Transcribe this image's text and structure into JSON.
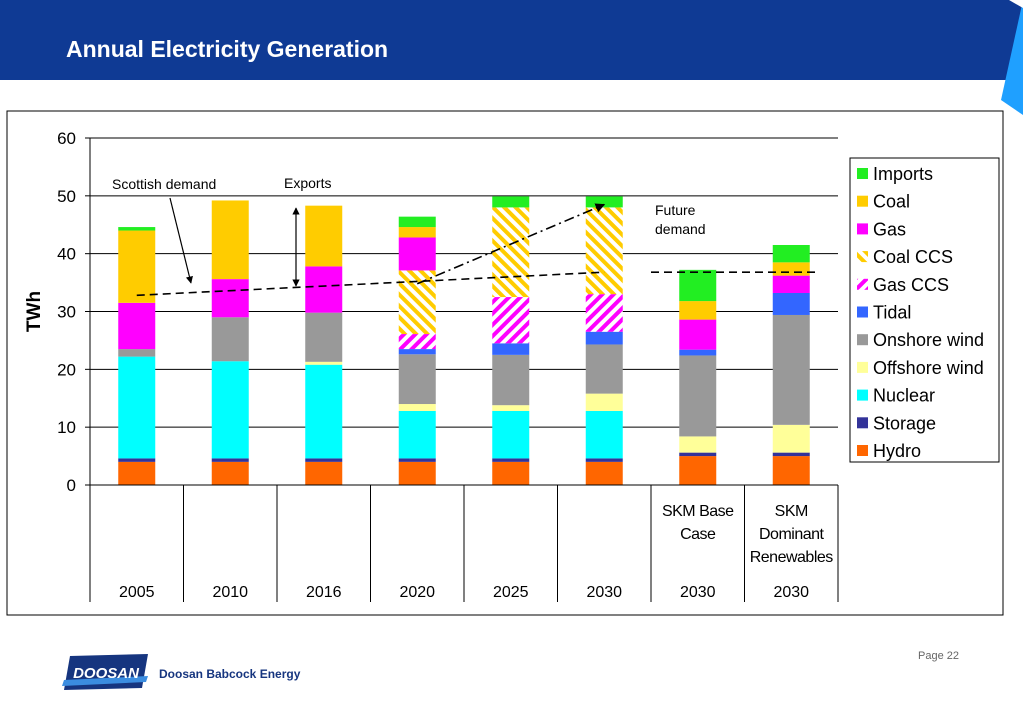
{
  "header": {
    "title": "Annual Electricity Generation"
  },
  "footer": {
    "page": "Page 22",
    "company": "Doosan Babcock Energy",
    "logo_text": "DOOSAN"
  },
  "colors": {
    "header_bg": "#0f3a94",
    "Imports": "#22ee22",
    "Coal": "#ffcc00",
    "Gas": "#ff00ff",
    "Coal CCS": "#ffcc00",
    "Gas CCS": "#ff00ff",
    "Tidal": "#3366ff",
    "Onshore wind": "#999999",
    "Offshore wind": "#ffff99",
    "Nuclear": "#00ffff",
    "Storage": "#333399",
    "Hydro": "#ff6600"
  },
  "chart_data": {
    "type": "bar",
    "stacked": true,
    "ylabel": "TWh",
    "ylim": [
      0,
      60
    ],
    "yticks": [
      0,
      10,
      20,
      30,
      40,
      50,
      60
    ],
    "grid": true,
    "legend_position": "right",
    "categories": [
      "2005",
      "2010",
      "2016",
      "2020",
      "2025",
      "2030",
      "2030",
      "2030"
    ],
    "category_sublabels": [
      "",
      "",
      "",
      "",
      "",
      "",
      "SKM Base Case",
      "SKM Dominant Renewables"
    ],
    "series": [
      {
        "name": "Hydro",
        "values": [
          4.0,
          4.0,
          4.0,
          4.0,
          4.0,
          4.0,
          5.0,
          5.0
        ]
      },
      {
        "name": "Storage",
        "values": [
          0.6,
          0.6,
          0.6,
          0.6,
          0.6,
          0.6,
          0.6,
          0.6
        ]
      },
      {
        "name": "Nuclear",
        "values": [
          17.6,
          16.8,
          16.2,
          8.2,
          8.2,
          8.2,
          0,
          0
        ]
      },
      {
        "name": "Offshore wind",
        "values": [
          0,
          0,
          0.5,
          1.2,
          1.0,
          3.0,
          2.8,
          4.8
        ]
      },
      {
        "name": "Onshore wind",
        "values": [
          1.3,
          7.6,
          8.5,
          8.6,
          8.7,
          8.5,
          14.0,
          19.0
        ]
      },
      {
        "name": "Tidal",
        "values": [
          0,
          0,
          0,
          0.9,
          2.0,
          2.2,
          1.0,
          3.8
        ]
      },
      {
        "name": "Gas CCS",
        "values": [
          0,
          0,
          0,
          2.6,
          8.0,
          6.5,
          0,
          0
        ]
      },
      {
        "name": "Coal CCS",
        "values": [
          0,
          0,
          0,
          11.0,
          15.5,
          15.0,
          0,
          0
        ]
      },
      {
        "name": "Gas",
        "values": [
          8.0,
          6.6,
          8.0,
          5.7,
          0,
          0,
          5.2,
          3.0
        ]
      },
      {
        "name": "Coal",
        "values": [
          12.5,
          13.6,
          10.5,
          1.8,
          0,
          0,
          3.2,
          2.3
        ]
      },
      {
        "name": "Imports",
        "values": [
          0.6,
          0,
          0,
          1.8,
          1.9,
          1.9,
          5.4,
          3.0
        ]
      }
    ],
    "legend_order": [
      "Imports",
      "Coal",
      "Gas",
      "Coal CCS",
      "Gas CCS",
      "Tidal",
      "Onshore wind",
      "Offshore wind",
      "Nuclear",
      "Storage",
      "Hydro"
    ],
    "hatched_series": [
      "Coal CCS",
      "Gas CCS"
    ],
    "lines": [
      {
        "name": "Scottish demand",
        "style": "dashed",
        "points": [
          [
            0,
            32.8
          ],
          [
            5,
            36.8
          ]
        ]
      },
      {
        "name": "Future demand",
        "style": "dashdot",
        "points": [
          [
            3,
            34.8
          ],
          [
            5,
            48.5
          ]
        ]
      },
      {
        "name": "Future demand",
        "style": "dashed",
        "points": [
          [
            5.5,
            36.8
          ],
          [
            7.3,
            36.8
          ]
        ]
      }
    ],
    "annotations": {
      "scottish_demand": "Scottish demand",
      "exports": "Exports",
      "future_demand_1": "Future",
      "future_demand_2": "demand"
    }
  }
}
